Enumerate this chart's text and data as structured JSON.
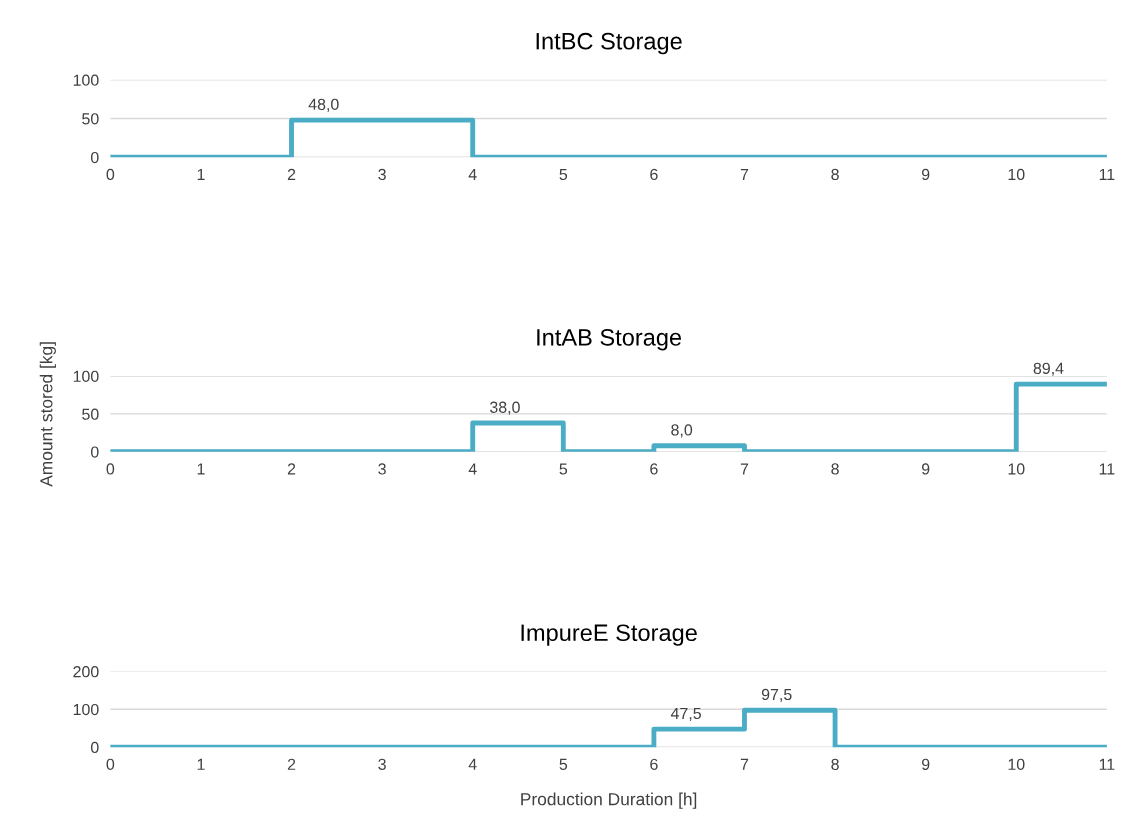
{
  "chart_data": [
    {
      "type": "step",
      "title": "IntBC Storage",
      "x": [
        0,
        1,
        2,
        3,
        4,
        5,
        6,
        7,
        8,
        9,
        10,
        11
      ],
      "color": "#4bacc6",
      "values": [
        0,
        0,
        48,
        48,
        0,
        0,
        0,
        0,
        0,
        0,
        0,
        0
      ],
      "value_labels": [
        null,
        null,
        "48,0",
        null,
        null,
        null,
        null,
        null,
        null,
        null,
        null,
        null
      ],
      "xlim": [
        0,
        11
      ],
      "xticks": [
        0,
        1,
        2,
        3,
        4,
        5,
        6,
        7,
        8,
        9,
        10,
        11
      ],
      "ylim": [
        0,
        100
      ],
      "yticks": [
        0,
        50,
        100
      ],
      "grid": "y"
    },
    {
      "type": "step",
      "title": "IntAB Storage",
      "ylabel": "Amount stored [kg]",
      "x": [
        0,
        1,
        2,
        3,
        4,
        5,
        6,
        7,
        8,
        9,
        10,
        11
      ],
      "color": "#4bacc6",
      "values": [
        0,
        0,
        0,
        0,
        38,
        0,
        8,
        0,
        0,
        0,
        89.4,
        89.4
      ],
      "value_labels": [
        null,
        null,
        null,
        null,
        "38,0",
        null,
        "8,0",
        null,
        null,
        null,
        "89,4",
        null
      ],
      "xlim": [
        0,
        11
      ],
      "xticks": [
        0,
        1,
        2,
        3,
        4,
        5,
        6,
        7,
        8,
        9,
        10,
        11
      ],
      "ylim": [
        0,
        100
      ],
      "yticks": [
        0,
        50,
        100
      ],
      "grid": "y"
    },
    {
      "type": "step",
      "title": "ImpureE Storage",
      "xlabel": "Production Duration [h]",
      "x": [
        0,
        1,
        2,
        3,
        4,
        5,
        6,
        7,
        8,
        9,
        10,
        11
      ],
      "color": "#4bacc6",
      "values": [
        0,
        0,
        0,
        0,
        0,
        0,
        47.5,
        97.5,
        0,
        0,
        0,
        0
      ],
      "value_labels": [
        null,
        null,
        null,
        null,
        null,
        null,
        "47,5",
        "97,5",
        null,
        null,
        null,
        null
      ],
      "xlim": [
        0,
        11
      ],
      "xticks": [
        0,
        1,
        2,
        3,
        4,
        5,
        6,
        7,
        8,
        9,
        10,
        11
      ],
      "ylim": [
        0,
        200
      ],
      "yticks": [
        0,
        100,
        200
      ],
      "grid": "y"
    }
  ]
}
